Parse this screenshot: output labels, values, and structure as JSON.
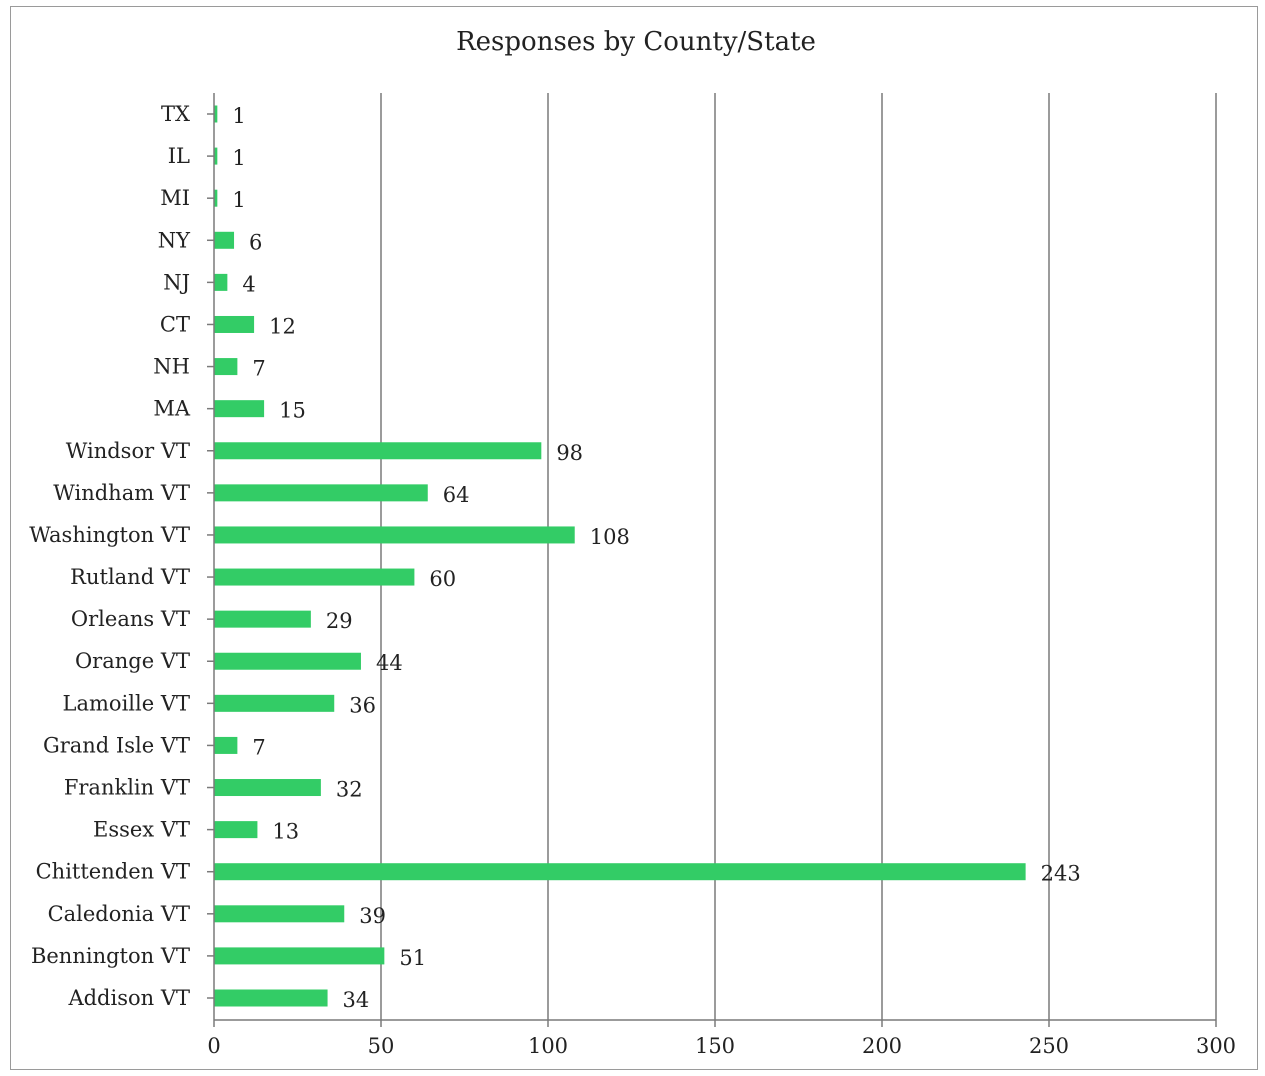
{
  "chart_data": {
    "type": "bar",
    "orientation": "horizontal",
    "title": "Responses by County/State",
    "xlabel": "",
    "ylabel": "",
    "xlim": [
      0,
      300
    ],
    "x_ticks": [
      0,
      50,
      100,
      150,
      200,
      250,
      300
    ],
    "grid": true,
    "legend": "none",
    "bar_color": "#33cc66",
    "categories": [
      "TX",
      "IL",
      "MI",
      "NY",
      "NJ",
      "CT",
      "NH",
      "MA",
      "Windsor VT",
      "Windham VT",
      "Washington VT",
      "Rutland VT",
      "Orleans VT",
      "Orange VT",
      "Lamoille VT",
      "Grand Isle VT",
      "Franklin VT",
      "Essex VT",
      "Chittenden VT",
      "Caledonia VT",
      "Bennington VT",
      "Addison VT"
    ],
    "values": [
      1,
      1,
      1,
      6,
      4,
      12,
      7,
      15,
      98,
      64,
      108,
      60,
      29,
      44,
      36,
      7,
      32,
      13,
      243,
      39,
      51,
      34
    ]
  }
}
